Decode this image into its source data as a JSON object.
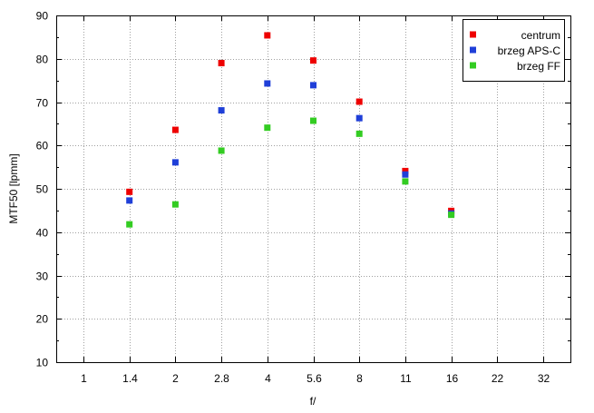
{
  "chart_data": {
    "type": "scatter",
    "xlabel": "f/",
    "ylabel": "MTF50 [lpmm]",
    "x_scale": "log-f-stop",
    "x_ticks": [
      "1",
      "1.4",
      "2",
      "2.8",
      "4",
      "5.6",
      "8",
      "11",
      "16",
      "22",
      "32"
    ],
    "ylim": [
      10,
      90
    ],
    "y_ticks": [
      10,
      20,
      30,
      40,
      50,
      60,
      70,
      80,
      90
    ],
    "grid": true,
    "legend_position": "top-right",
    "series": [
      {
        "name": "centrum",
        "color": "#ee0000",
        "points": [
          {
            "x": "1.4",
            "y": 49.3
          },
          {
            "x": "2",
            "y": 63.6
          },
          {
            "x": "2.8",
            "y": 79
          },
          {
            "x": "4",
            "y": 85.4
          },
          {
            "x": "5.6",
            "y": 79.6
          },
          {
            "x": "8",
            "y": 70.1
          },
          {
            "x": "11",
            "y": 54.1
          },
          {
            "x": "16",
            "y": 44.9
          }
        ]
      },
      {
        "name": "brzeg APS-C",
        "color": "#1f3fd8",
        "points": [
          {
            "x": "1.4",
            "y": 47.3
          },
          {
            "x": "2",
            "y": 56.1
          },
          {
            "x": "2.8",
            "y": 68.1
          },
          {
            "x": "4",
            "y": 74.3
          },
          {
            "x": "5.6",
            "y": 73.9
          },
          {
            "x": "8",
            "y": 66.3
          },
          {
            "x": "11",
            "y": 53.3
          },
          {
            "x": "16",
            "y": 44.3
          }
        ]
      },
      {
        "name": "brzeg FF",
        "color": "#33cc22",
        "points": [
          {
            "x": "1.4",
            "y": 41.8
          },
          {
            "x": "2",
            "y": 46.4
          },
          {
            "x": "2.8",
            "y": 58.8
          },
          {
            "x": "4",
            "y": 64.1
          },
          {
            "x": "5.6",
            "y": 65.7
          },
          {
            "x": "8",
            "y": 62.7
          },
          {
            "x": "11",
            "y": 51.7
          },
          {
            "x": "16",
            "y": 44
          }
        ]
      }
    ]
  }
}
